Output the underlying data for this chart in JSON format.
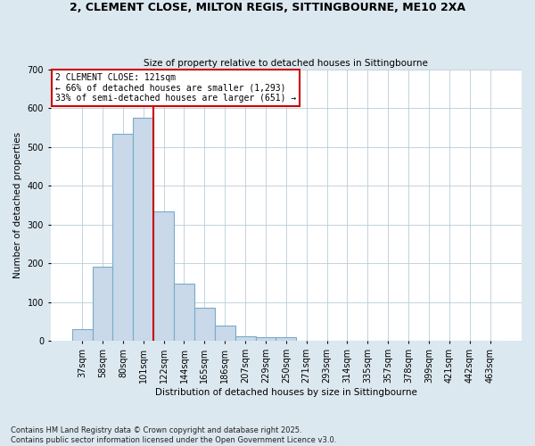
{
  "title": "2, CLEMENT CLOSE, MILTON REGIS, SITTINGBOURNE, ME10 2XA",
  "subtitle": "Size of property relative to detached houses in Sittingbourne",
  "xlabel": "Distribution of detached houses by size in Sittingbourne",
  "ylabel": "Number of detached properties",
  "categories": [
    "37sqm",
    "58sqm",
    "80sqm",
    "101sqm",
    "122sqm",
    "144sqm",
    "165sqm",
    "186sqm",
    "207sqm",
    "229sqm",
    "250sqm",
    "271sqm",
    "293sqm",
    "314sqm",
    "335sqm",
    "357sqm",
    "378sqm",
    "399sqm",
    "421sqm",
    "442sqm",
    "463sqm"
  ],
  "values": [
    30,
    192,
    535,
    575,
    333,
    148,
    85,
    40,
    13,
    10,
    10,
    0,
    0,
    0,
    0,
    0,
    0,
    0,
    0,
    0,
    0
  ],
  "bar_color": "#c9d9ea",
  "bar_edge_color": "#7aaac8",
  "vline_color": "#cc0000",
  "vline_x_index": 4,
  "annotation_text_line1": "2 CLEMENT CLOSE: 121sqm",
  "annotation_text_line2": "← 66% of detached houses are smaller (1,293)",
  "annotation_text_line3": "33% of semi-detached houses are larger (651) →",
  "annotation_box_color": "#cc0000",
  "ylim": [
    0,
    700
  ],
  "yticks": [
    0,
    100,
    200,
    300,
    400,
    500,
    600,
    700
  ],
  "footnote_line1": "Contains HM Land Registry data © Crown copyright and database right 2025.",
  "footnote_line2": "Contains public sector information licensed under the Open Government Licence v3.0.",
  "bg_color": "#dce8f0",
  "plot_bg_color": "#ffffff",
  "grid_color": "#b8ccd8"
}
